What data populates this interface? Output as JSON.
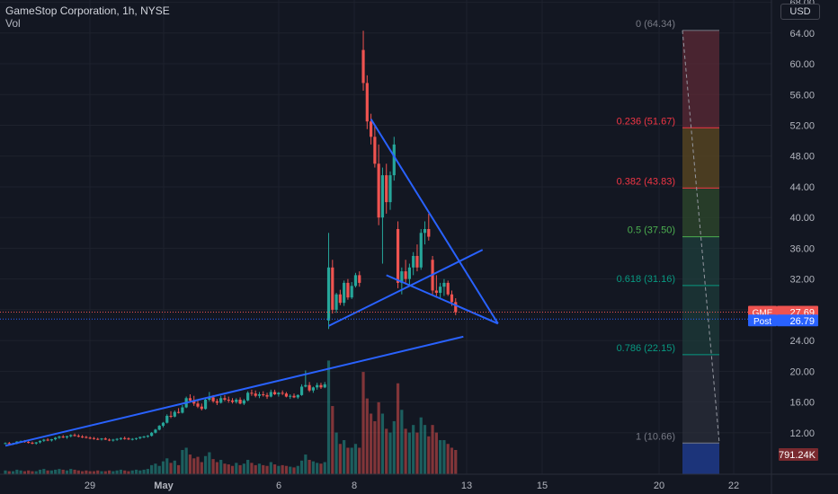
{
  "header": {
    "title": "GameStop Corporation, 1h, NYSE",
    "vol_label": "Vol",
    "currency": "USD"
  },
  "colors": {
    "up": "#26a69a",
    "down": "#ef5350",
    "trend": "#2962ff",
    "background": "#131722",
    "post": "#2962ff"
  },
  "price_tags": {
    "last": {
      "label": "GME",
      "value": "27.69",
      "price": 27.69
    },
    "post": {
      "label": "Post",
      "value": "26.79",
      "price": 26.79
    },
    "volume": {
      "value": "791.24K"
    }
  },
  "chart_data": {
    "type": "candlestick",
    "title": "GameStop Corporation, 1h, NYSE",
    "y_axis": {
      "ticks": [
        12,
        16,
        20,
        24,
        28,
        32,
        36,
        40,
        44,
        48,
        52,
        56,
        60,
        64,
        68
      ],
      "range": [
        6.6,
        68.3
      ]
    },
    "x_axis": {
      "ticks": [
        "29",
        "May",
        "6",
        "8",
        "13",
        "15",
        "20",
        "22"
      ]
    },
    "fibonacci": [
      {
        "label": "0 (64.34)",
        "price": 64.34,
        "color": "#787b86"
      },
      {
        "label": "0.236 (51.67)",
        "price": 51.67,
        "color": "#f23645"
      },
      {
        "label": "0.382 (43.83)",
        "price": 43.83,
        "color": "#f23645"
      },
      {
        "label": "0.5 (37.50)",
        "price": 37.5,
        "color": "#4caf50"
      },
      {
        "label": "0.618 (31.16)",
        "price": 31.16,
        "color": "#089981"
      },
      {
        "label": "0.786 (22.15)",
        "price": 22.15,
        "color": "#089981"
      },
      {
        "label": "1 (10.66)",
        "price": 10.66,
        "color": "#787b86"
      }
    ],
    "fib_zone_colors": [
      "#5c2a36",
      "#5e4a22",
      "#2f4a2c",
      "#1f3f3c",
      "#1e3b39",
      "#2a2e39"
    ],
    "candles": [
      [
        10.6,
        10.75,
        10.5,
        10.65
      ],
      [
        10.65,
        10.8,
        10.5,
        10.55
      ],
      [
        10.55,
        10.7,
        10.4,
        10.6
      ],
      [
        10.6,
        10.9,
        10.5,
        10.85
      ],
      [
        10.85,
        11.0,
        10.7,
        10.9
      ],
      [
        10.9,
        11.05,
        10.7,
        10.8
      ],
      [
        10.8,
        10.95,
        10.6,
        10.7
      ],
      [
        10.7,
        10.85,
        10.5,
        10.6
      ],
      [
        10.6,
        10.8,
        10.45,
        10.75
      ],
      [
        10.75,
        11.0,
        10.6,
        10.95
      ],
      [
        10.95,
        11.2,
        10.8,
        11.1
      ],
      [
        11.1,
        11.3,
        10.9,
        11.0
      ],
      [
        11.0,
        11.2,
        10.85,
        11.15
      ],
      [
        11.15,
        11.45,
        11.0,
        11.35
      ],
      [
        11.35,
        11.6,
        11.2,
        11.5
      ],
      [
        11.5,
        11.7,
        11.3,
        11.4
      ],
      [
        11.4,
        11.6,
        11.2,
        11.55
      ],
      [
        11.55,
        11.8,
        11.4,
        11.7
      ],
      [
        11.7,
        11.9,
        11.5,
        11.6
      ],
      [
        11.6,
        11.8,
        11.4,
        11.5
      ],
      [
        11.5,
        11.7,
        11.3,
        11.45
      ],
      [
        11.45,
        11.6,
        11.25,
        11.35
      ],
      [
        11.35,
        11.5,
        11.15,
        11.3
      ],
      [
        11.3,
        11.45,
        11.1,
        11.2
      ],
      [
        11.2,
        11.35,
        11.05,
        11.15
      ],
      [
        11.15,
        11.3,
        11.0,
        11.25
      ],
      [
        11.25,
        11.4,
        11.05,
        11.1
      ],
      [
        11.1,
        11.25,
        10.9,
        11.0
      ],
      [
        11.0,
        11.2,
        10.85,
        11.1
      ],
      [
        11.1,
        11.3,
        10.95,
        11.2
      ],
      [
        11.2,
        11.4,
        11.05,
        11.3
      ],
      [
        11.3,
        11.5,
        11.1,
        11.25
      ],
      [
        11.25,
        11.4,
        11.05,
        11.15
      ],
      [
        11.15,
        11.3,
        11.0,
        11.2
      ],
      [
        11.2,
        11.35,
        11.05,
        11.3
      ],
      [
        11.3,
        11.5,
        11.15,
        11.45
      ],
      [
        11.45,
        11.6,
        11.3,
        11.5
      ],
      [
        11.5,
        11.7,
        11.35,
        11.6
      ],
      [
        11.6,
        12.1,
        11.5,
        12.0
      ],
      [
        12.0,
        12.5,
        11.9,
        12.4
      ],
      [
        12.4,
        13.0,
        12.3,
        12.9
      ],
      [
        12.9,
        13.4,
        12.7,
        13.3
      ],
      [
        13.3,
        14.4,
        13.2,
        14.2
      ],
      [
        14.2,
        14.8,
        13.9,
        14.1
      ],
      [
        14.1,
        14.9,
        14.0,
        14.7
      ],
      [
        14.7,
        15.2,
        14.5,
        14.6
      ],
      [
        14.6,
        15.6,
        14.5,
        15.3
      ],
      [
        15.3,
        16.7,
        15.2,
        16.5
      ],
      [
        16.5,
        17.0,
        16.0,
        16.2
      ],
      [
        16.2,
        16.8,
        15.5,
        15.8
      ],
      [
        15.8,
        16.3,
        15.2,
        15.4
      ],
      [
        15.4,
        15.8,
        14.9,
        15.1
      ],
      [
        15.1,
        16.5,
        15.0,
        16.3
      ],
      [
        16.3,
        17.3,
        16.1,
        16.6
      ],
      [
        16.6,
        16.9,
        15.9,
        16.1
      ],
      [
        16.1,
        16.4,
        15.6,
        15.9
      ],
      [
        15.9,
        16.8,
        15.8,
        16.5
      ],
      [
        16.5,
        16.9,
        16.1,
        16.3
      ],
      [
        16.3,
        16.7,
        15.9,
        16.2
      ],
      [
        16.2,
        16.5,
        15.8,
        16.0
      ],
      [
        16.0,
        16.5,
        15.8,
        16.3
      ],
      [
        16.3,
        16.6,
        15.7,
        15.8
      ],
      [
        15.8,
        16.4,
        15.6,
        16.2
      ],
      [
        16.2,
        17.4,
        16.1,
        17.2
      ],
      [
        17.2,
        17.6,
        16.8,
        17.1
      ],
      [
        17.1,
        17.5,
        16.6,
        16.8
      ],
      [
        16.8,
        17.3,
        16.5,
        17.0
      ],
      [
        17.0,
        17.4,
        16.7,
        16.9
      ],
      [
        16.9,
        17.2,
        16.4,
        16.7
      ],
      [
        16.7,
        17.6,
        16.6,
        17.3
      ],
      [
        17.3,
        17.6,
        16.9,
        17.0
      ],
      [
        17.0,
        17.3,
        16.7,
        17.2
      ],
      [
        17.2,
        17.5,
        16.9,
        17.1
      ],
      [
        17.1,
        17.3,
        16.6,
        16.7
      ],
      [
        16.7,
        17.0,
        16.4,
        16.8
      ],
      [
        16.8,
        17.1,
        16.5,
        16.6
      ],
      [
        16.6,
        17.0,
        16.4,
        16.9
      ],
      [
        16.9,
        18.3,
        16.8,
        18.0
      ],
      [
        18.0,
        20.1,
        17.9,
        18.2
      ],
      [
        18.2,
        18.6,
        17.3,
        17.5
      ],
      [
        17.5,
        18.0,
        17.2,
        17.9
      ],
      [
        17.9,
        18.5,
        17.6,
        18.2
      ],
      [
        18.2,
        18.5,
        17.7,
        17.9
      ],
      [
        17.9,
        18.6,
        17.8,
        18.3
      ],
      [
        26.6,
        38.0,
        25.5,
        33.5
      ],
      [
        33.5,
        34.5,
        27.5,
        28.0
      ],
      [
        28.0,
        30.2,
        27.6,
        30.0
      ],
      [
        30.0,
        30.6,
        28.6,
        28.9
      ],
      [
        28.9,
        31.8,
        28.5,
        31.5
      ],
      [
        31.5,
        32.0,
        29.3,
        29.6
      ],
      [
        29.6,
        31.6,
        29.4,
        31.1
      ],
      [
        31.1,
        32.8,
        30.9,
        32.5
      ],
      [
        32.5,
        33.0,
        31.0,
        31.5
      ],
      [
        61.8,
        64.3,
        56.5,
        57.5
      ],
      [
        57.5,
        58.5,
        51.5,
        52.5
      ],
      [
        52.5,
        53.5,
        49.5,
        50.5
      ],
      [
        50.5,
        52.0,
        46.5,
        47.0
      ],
      [
        47.0,
        49.5,
        39.0,
        40.0
      ],
      [
        40.0,
        46.5,
        34.0,
        45.5
      ],
      [
        45.5,
        47.0,
        40.5,
        42.0
      ],
      [
        42.0,
        46.0,
        41.0,
        45.5
      ],
      [
        45.5,
        50.5,
        44.8,
        49.5
      ],
      [
        38.5,
        39.5,
        30.8,
        31.5
      ],
      [
        31.5,
        33.5,
        30.0,
        33.0
      ],
      [
        33.0,
        34.5,
        31.5,
        32.0
      ],
      [
        32.0,
        34.0,
        31.2,
        33.5
      ],
      [
        33.5,
        35.5,
        32.5,
        35.0
      ],
      [
        35.0,
        36.5,
        33.0,
        33.5
      ],
      [
        33.5,
        38.5,
        33.2,
        38.0
      ],
      [
        38.0,
        39.5,
        36.5,
        38.5
      ],
      [
        38.5,
        40.5,
        37.0,
        37.5
      ],
      [
        34.5,
        35.0,
        30.0,
        30.5
      ],
      [
        30.5,
        32.5,
        29.8,
        30.2
      ],
      [
        30.2,
        31.5,
        29.5,
        31.0
      ],
      [
        31.0,
        32.0,
        29.8,
        31.5
      ],
      [
        31.5,
        31.8,
        29.8,
        30.0
      ],
      [
        30.0,
        30.5,
        28.5,
        29.0
      ],
      [
        29.0,
        29.5,
        27.3,
        27.69
      ]
    ],
    "volumes": [
      0.5,
      0.4,
      0.4,
      0.6,
      0.5,
      0.4,
      0.5,
      0.4,
      0.4,
      0.6,
      0.7,
      0.5,
      0.5,
      0.6,
      0.7,
      0.6,
      0.5,
      0.7,
      0.6,
      0.5,
      0.4,
      0.5,
      0.4,
      0.4,
      0.5,
      0.4,
      0.4,
      0.5,
      0.4,
      0.5,
      0.6,
      0.5,
      0.4,
      0.5,
      0.6,
      0.5,
      0.6,
      0.7,
      1.2,
      1.4,
      1.1,
      1.7,
      2.1,
      1.5,
      1.8,
      1.2,
      3.2,
      3.5,
      2.6,
      2.1,
      2.3,
      1.6,
      2.4,
      2.9,
      2.0,
      1.6,
      1.9,
      1.4,
      1.3,
      1.1,
      1.5,
      1.2,
      1.4,
      1.9,
      1.5,
      1.2,
      1.4,
      1.2,
      1.1,
      1.6,
      1.3,
      1.1,
      1.2,
      1.1,
      1.0,
      0.9,
      1.1,
      1.8,
      2.6,
      1.9,
      1.7,
      1.5,
      1.4,
      1.6,
      15.0,
      9.0,
      5.5,
      4.0,
      4.5,
      3.5,
      3.5,
      4.0,
      3.5,
      13.5,
      10.0,
      8.0,
      7.0,
      9.5,
      8.0,
      6.0,
      5.5,
      7.0,
      12.0,
      8.5,
      6.0,
      5.5,
      6.5,
      5.5,
      7.5,
      6.5,
      5.0,
      6.5,
      5.5,
      4.5,
      4.5,
      4.0,
      3.5,
      3.2
    ],
    "volume_max": 16.0,
    "trendlines": [
      {
        "from": [
          0,
          10.3
        ],
        "to": [
          119,
          24.5
        ]
      },
      {
        "from": [
          84,
          25.9
        ],
        "to": [
          124,
          35.8
        ]
      },
      {
        "from": [
          95,
          52.8
        ],
        "to": [
          128,
          26.2
        ]
      },
      {
        "from": [
          99,
          32.5
        ],
        "to": [
          128,
          26.2
        ]
      }
    ]
  }
}
